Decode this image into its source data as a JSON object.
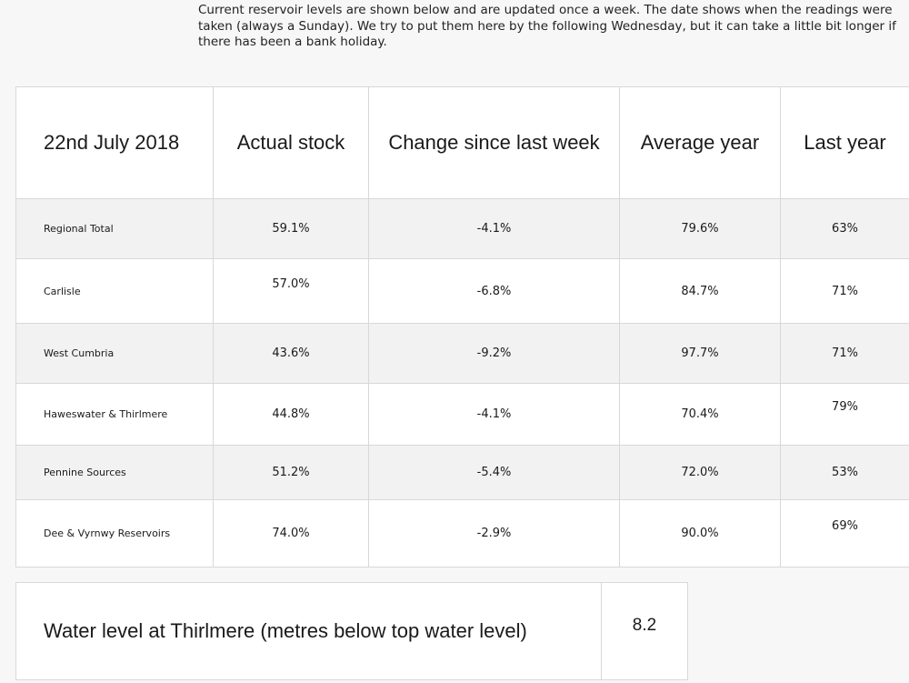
{
  "intro": "Current reservoir levels are shown below and are updated once a week. The date shows when the readings were taken (always a Sunday). We try to put them here by the following Wednesday, but it can take a little bit longer if there has been a bank holiday.",
  "table": {
    "headers": [
      "22nd July 2018",
      "Actual stock",
      "Change since last week",
      "Average year",
      "Last year"
    ],
    "rows": [
      {
        "name": "Regional Total",
        "actual": "59.1%",
        "change": "-4.1%",
        "average": "79.6%",
        "last": "63%"
      },
      {
        "name": "Carlisle",
        "actual": "57.0%",
        "change": "-6.8%",
        "average": "84.7%",
        "last": "71%"
      },
      {
        "name": "West Cumbria",
        "actual": "43.6%",
        "change": "-9.2%",
        "average": "97.7%",
        "last": "71%"
      },
      {
        "name": "Haweswater & Thirlmere",
        "actual": "44.8%",
        "change": "-4.1%",
        "average": "70.4%",
        "last": "79%"
      },
      {
        "name": "Pennine Sources",
        "actual": "51.2%",
        "change": "-5.4%",
        "average": "72.0%",
        "last": "53%"
      },
      {
        "name": "Dee & Vyrnwy Reservoirs",
        "actual": "74.0%",
        "change": "-2.9%",
        "average": "90.0%",
        "last": "69%"
      }
    ]
  },
  "thirlmere": {
    "label": "Water level at Thirlmere (metres below top water level)",
    "value": "8.2"
  }
}
